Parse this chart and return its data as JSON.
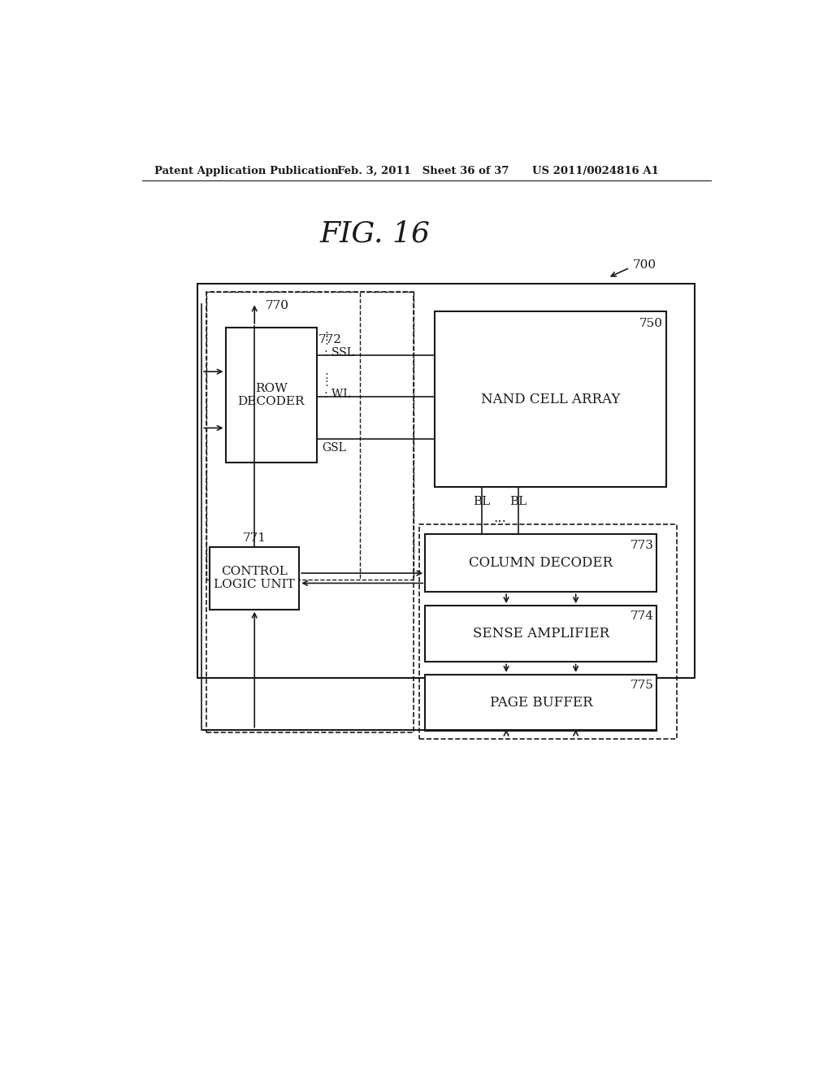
{
  "bg_color": "#ffffff",
  "fig_title": "FIG. 16",
  "header_left": "Patent Application Publication",
  "header_mid": "Feb. 3, 2011   Sheet 36 of 37",
  "header_right": "US 2011/0024816 A1",
  "label_700": "700",
  "label_770": "770",
  "label_771": "771",
  "label_772": "772",
  "label_773": "773",
  "label_774": "774",
  "label_775": "775",
  "label_750": "750",
  "box_row_decoder": "ROW\nDECODER",
  "box_nand": "NAND CELL ARRAY",
  "box_control": "CONTROL\nLOGIC UNIT",
  "box_column": "COLUMN DECODER",
  "box_sense": "SENSE AMPLIFIER",
  "box_page": "PAGE BUFFER",
  "line_color": "#1a1a1a",
  "text_color": "#1a1a1a"
}
